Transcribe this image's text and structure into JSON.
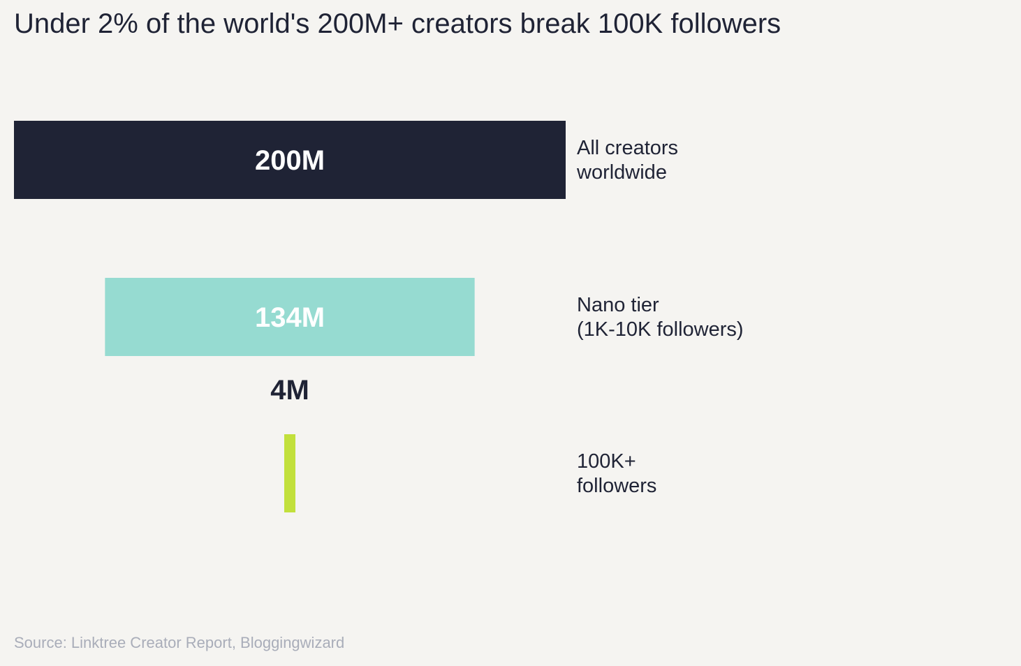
{
  "title": "Under 2% of the world's 200M+ creators break 100K followers",
  "source": "Source: Linktree Creator Report, Bloggingwizard",
  "chart_data": {
    "type": "bar",
    "orientation": "horizontal-centered",
    "title": "Under 2% of the world's 200M+ creators break 100K followers",
    "categories": [
      [
        "All creators",
        "worldwide"
      ],
      [
        "Nano tier",
        "(1K-10K followers)"
      ],
      [
        "100K+",
        "followers"
      ]
    ],
    "values": [
      200,
      134,
      4
    ],
    "value_labels": [
      "200M",
      "134M",
      "4M"
    ],
    "unit": "M",
    "colors": [
      "#1f2335",
      "#96dbd1",
      "#c2e03c"
    ],
    "xlim": [
      0,
      200
    ],
    "grid": false,
    "legend": "none"
  }
}
